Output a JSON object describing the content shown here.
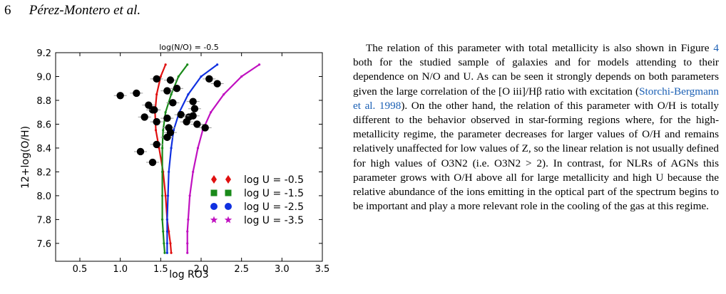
{
  "running_head": {
    "page_number": "6",
    "authors": "Pérez-Montero et al."
  },
  "colors": {
    "u_m05": "#e01010",
    "u_m15": "#1a8a1a",
    "u_m25": "#1030e0",
    "u_m35": "#c010c0"
  },
  "chart_data": {
    "type": "scatter",
    "title": "log(N/O) = -0.5",
    "xlabel": "log RO3",
    "ylabel": "12+log(O/H)",
    "xlim": [
      0.2,
      3.5
    ],
    "ylim": [
      7.45,
      9.2
    ],
    "xticks": [
      "0.5",
      "1.0",
      "1.5",
      "2.0",
      "2.5",
      "3.0",
      "3.5"
    ],
    "yticks": [
      "7.6",
      "7.8",
      "8.0",
      "8.2",
      "8.4",
      "8.6",
      "8.8",
      "9.0",
      "9.2"
    ],
    "legend_position": "lower-right",
    "points": [
      {
        "x": 1.0,
        "y": 8.84
      },
      {
        "x": 1.2,
        "y": 8.86
      },
      {
        "x": 1.45,
        "y": 8.98
      },
      {
        "x": 1.62,
        "y": 8.97
      },
      {
        "x": 1.58,
        "y": 8.88
      },
      {
        "x": 1.7,
        "y": 8.9
      },
      {
        "x": 1.35,
        "y": 8.76
      },
      {
        "x": 1.4,
        "y": 8.72
      },
      {
        "x": 1.42,
        "y": 8.72
      },
      {
        "x": 1.65,
        "y": 8.78
      },
      {
        "x": 1.9,
        "y": 8.79
      },
      {
        "x": 1.92,
        "y": 8.73
      },
      {
        "x": 2.1,
        "y": 8.98
      },
      {
        "x": 2.2,
        "y": 8.94
      },
      {
        "x": 1.3,
        "y": 8.66
      },
      {
        "x": 1.45,
        "y": 8.62
      },
      {
        "x": 1.58,
        "y": 8.65
      },
      {
        "x": 1.75,
        "y": 8.68
      },
      {
        "x": 1.85,
        "y": 8.66
      },
      {
        "x": 1.9,
        "y": 8.67
      },
      {
        "x": 1.82,
        "y": 8.62
      },
      {
        "x": 1.6,
        "y": 8.57
      },
      {
        "x": 1.95,
        "y": 8.6
      },
      {
        "x": 2.05,
        "y": 8.57
      },
      {
        "x": 1.58,
        "y": 8.49
      },
      {
        "x": 1.45,
        "y": 8.43
      },
      {
        "x": 1.25,
        "y": 8.37
      },
      {
        "x": 1.4,
        "y": 8.28
      },
      {
        "x": 1.62,
        "y": 8.53
      }
    ],
    "series": [
      {
        "name": "log U = -0.5",
        "marker": "diamond",
        "color": "#e01010",
        "x": [
          1.56,
          1.5,
          1.45,
          1.43,
          1.44,
          1.48,
          1.53,
          1.56,
          1.58,
          1.6,
          1.62,
          1.63
        ],
        "y": [
          9.1,
          9.0,
          8.85,
          8.7,
          8.55,
          8.4,
          8.2,
          8.0,
          7.8,
          7.7,
          7.6,
          7.52
        ]
      },
      {
        "name": "log U = -1.5",
        "marker": "square",
        "color": "#1a8a1a",
        "x": [
          1.83,
          1.72,
          1.63,
          1.56,
          1.53,
          1.52,
          1.52,
          1.52,
          1.52,
          1.53,
          1.54,
          1.55
        ],
        "y": [
          9.1,
          9.0,
          8.85,
          8.7,
          8.55,
          8.4,
          8.2,
          8.0,
          7.8,
          7.7,
          7.6,
          7.52
        ]
      },
      {
        "name": "log U = -2.5",
        "marker": "circle",
        "color": "#1030e0",
        "x": [
          2.2,
          2.0,
          1.84,
          1.73,
          1.66,
          1.63,
          1.6,
          1.59,
          1.58,
          1.58,
          1.58,
          1.58
        ],
        "y": [
          9.1,
          9.0,
          8.85,
          8.7,
          8.55,
          8.4,
          8.2,
          8.0,
          7.8,
          7.7,
          7.6,
          7.52
        ]
      },
      {
        "name": "log U = -3.5",
        "marker": "star",
        "color": "#c010c0",
        "x": [
          2.72,
          2.5,
          2.28,
          2.12,
          2.02,
          1.96,
          1.9,
          1.86,
          1.84,
          1.83,
          1.83,
          1.83
        ],
        "y": [
          9.1,
          9.0,
          8.85,
          8.7,
          8.55,
          8.4,
          8.2,
          8.0,
          7.8,
          7.7,
          7.6,
          7.52
        ]
      }
    ]
  },
  "body": {
    "p1_a": "The relation of this parameter with total metallicity is also shown in Figure ",
    "p1_ref1": "4",
    "p1_b": " both for the studied sample of galaxies and for models attending to their dependence on N/O and U. As can be seen it strongly depends on both parameters given the large correlation of the [O iii]/Hβ ratio with excitation (",
    "p1_ref2": "Storchi-Bergmann et al. 1998",
    "p1_c": "). On the other hand, the relation of this parameter with O/H is totally different to the behavior observed in star-forming regions where, for the high-metallicity regime, the parameter decreases for larger values of O/H and remains relatively unaffected for low values of Z, so the linear relation is not usually defined for high values of O3N2 (i.e. O3N2 > 2). In contrast, for NLRs of AGNs this parameter grows with O/H above all for large metallicity and high U because the relative abundance of the ions emitting in the optical part of the spectrum begins to be important and play a more relevant role in the cooling of the gas at this regime."
  }
}
